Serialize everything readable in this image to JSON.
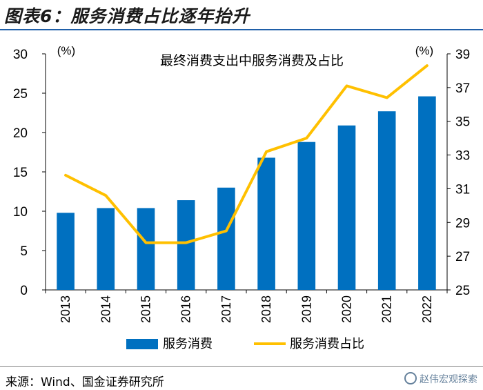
{
  "header": {
    "title": "图表6：服务消费占比逐年抬升"
  },
  "chart_data": {
    "type": "bar",
    "title": "最终消费支出中服务消费及占比",
    "categories": [
      "2013",
      "2014",
      "2015",
      "2016",
      "2017",
      "2018",
      "2019",
      "2020",
      "2021",
      "2022"
    ],
    "series": [
      {
        "name": "服务消费",
        "type": "bar",
        "axis": "left",
        "color": "#0070c0",
        "values": [
          9.8,
          10.4,
          10.4,
          11.4,
          13.0,
          16.8,
          18.8,
          20.9,
          22.7,
          24.6
        ]
      },
      {
        "name": "服务消费占比",
        "type": "line",
        "axis": "right",
        "color": "#ffc000",
        "values": [
          31.8,
          30.6,
          27.8,
          27.8,
          28.5,
          33.2,
          34.0,
          37.1,
          36.4,
          38.3
        ]
      }
    ],
    "y_left": {
      "label": "(%)",
      "lim": [
        0,
        30
      ],
      "ticks": [
        0,
        5,
        10,
        15,
        20,
        25,
        30
      ]
    },
    "y_right": {
      "label": "(%)",
      "lim": [
        25,
        39
      ],
      "ticks": [
        25,
        27,
        29,
        31,
        33,
        35,
        37,
        39
      ]
    },
    "legend_position": "bottom",
    "grid": false
  },
  "footer": {
    "source": "来源：Wind、国金证券研究所",
    "watermark": "赵伟宏观探索"
  }
}
